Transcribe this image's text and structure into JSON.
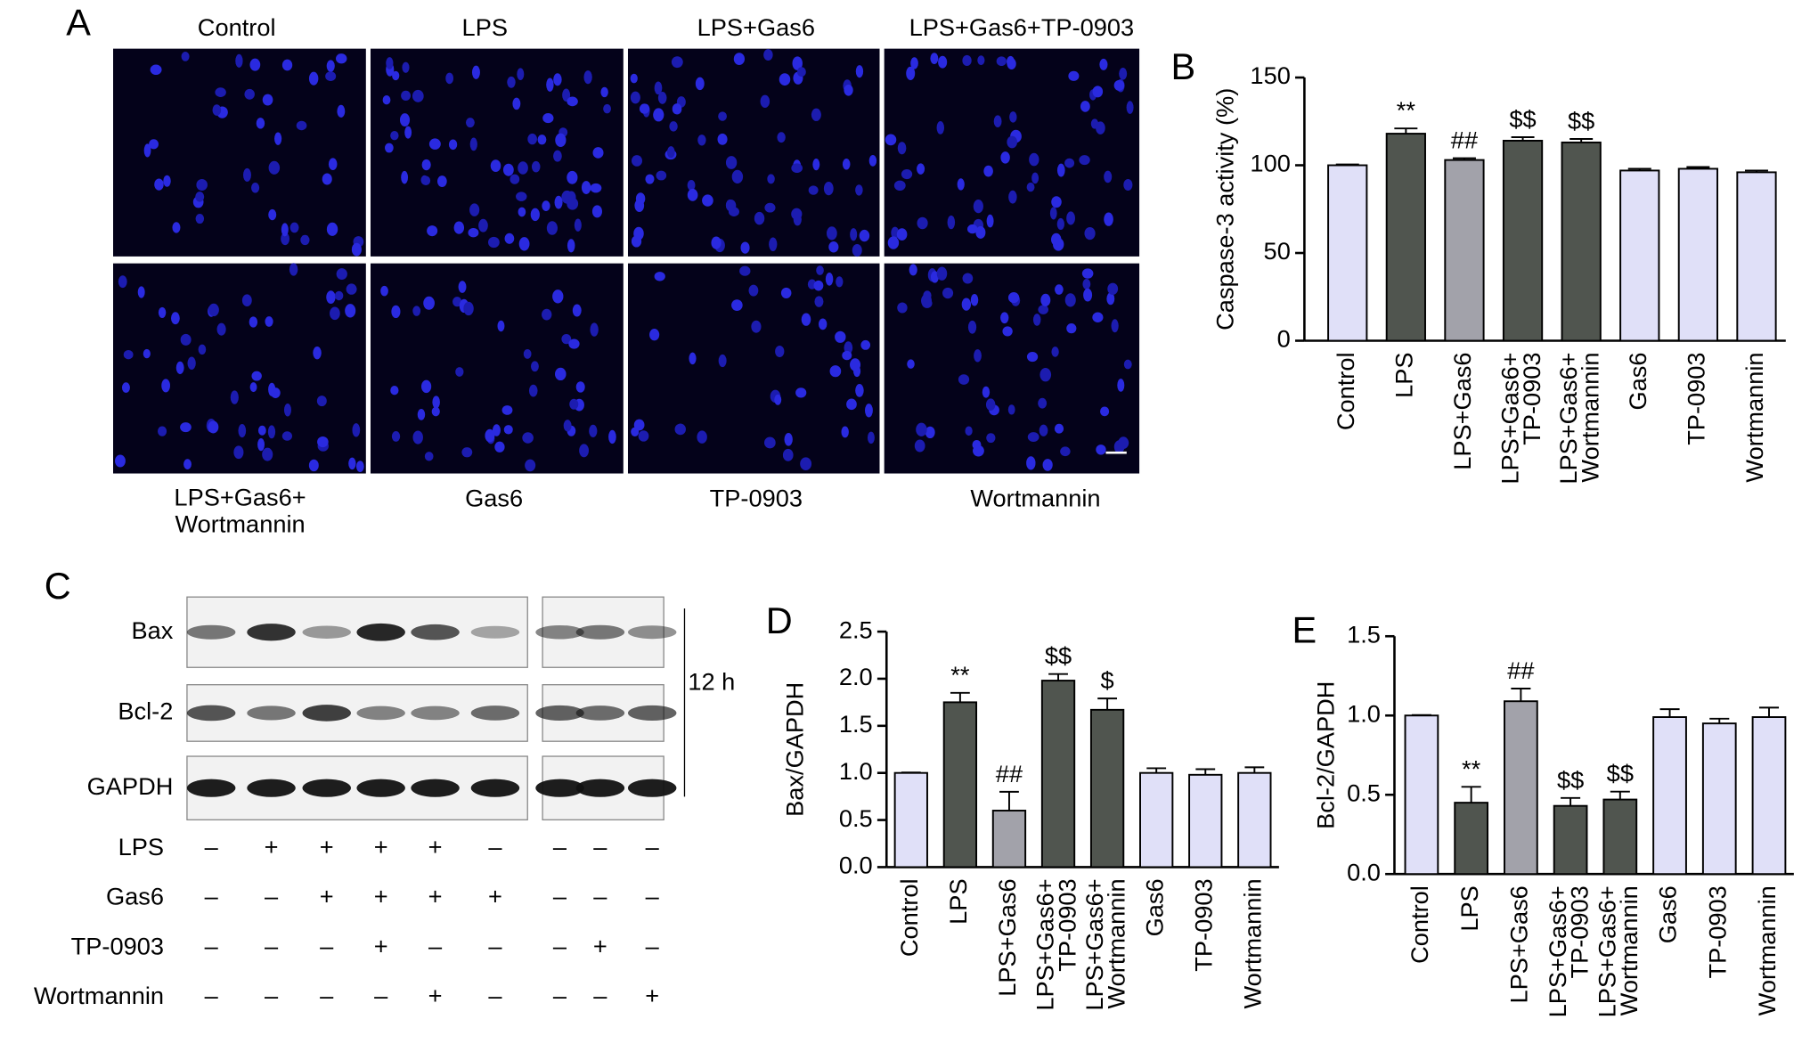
{
  "panel_labels": [
    "A",
    "B",
    "C",
    "D",
    "E"
  ],
  "panel_a": {
    "top_labels": [
      "Control",
      "LPS",
      "LPS+Gas6",
      "LPS+Gas6+TP-0903"
    ],
    "bottom_labels": [
      "LPS+Gas6+ Wortmannin",
      "Gas6",
      "TP-0903",
      "Wortmannin"
    ]
  },
  "panel_c": {
    "blots": [
      "Bax",
      "Bcl-2",
      "GAPDH"
    ],
    "time": "12 h",
    "rows": [
      {
        "label": "LPS",
        "signs": [
          "–",
          "+",
          "+",
          "+",
          "+",
          "–",
          "–",
          "–",
          "–"
        ]
      },
      {
        "label": "Gas6",
        "signs": [
          "–",
          "–",
          "+",
          "+",
          "+",
          "+",
          "–",
          "–",
          "–"
        ]
      },
      {
        "label": "TP-0903",
        "signs": [
          "–",
          "–",
          "–",
          "+",
          "–",
          "–",
          "–",
          "+",
          "–"
        ]
      },
      {
        "label": "Wortmannin",
        "signs": [
          "–",
          "–",
          "–",
          "–",
          "+",
          "–",
          "–",
          "–",
          "+"
        ]
      }
    ]
  },
  "chart_data": [
    {
      "type": "bar",
      "ylabel": "Caspase-3 activity (%)",
      "categories": [
        "Control",
        "LPS",
        "LPS+Gas6",
        "LPS+Gas6+ TP-0903",
        "LPS+Gas6+ Wortmannin",
        "Gas6",
        "TP-0903",
        "Wortmannin"
      ],
      "values": [
        100,
        118,
        103,
        114,
        113,
        97,
        98,
        96
      ],
      "errors": [
        0.5,
        3,
        1,
        2,
        2,
        1,
        1,
        1
      ],
      "colors": [
        "#e0e0f8",
        "#50554f",
        "#a2a2aa",
        "#50554f",
        "#50554f",
        "#e0e0f8",
        "#e0e0f8",
        "#e0e0f8"
      ],
      "annotations": [
        null,
        "**",
        "##",
        "$$",
        "$$",
        null,
        null,
        null
      ],
      "ylim": [
        0,
        150
      ],
      "yticks": [
        0,
        50,
        100,
        150
      ]
    },
    {
      "type": "bar",
      "ylabel": "Bax/GAPDH",
      "categories": [
        "Control",
        "LPS",
        "LPS+Gas6",
        "LPS+Gas6+ TP-0903",
        "LPS+Gas6+ Wortmannin",
        "Gas6",
        "TP-0903",
        "Wortmannin"
      ],
      "values": [
        1.0,
        1.75,
        0.6,
        1.98,
        1.67,
        1.0,
        0.98,
        1.0
      ],
      "errors": [
        0.005,
        0.1,
        0.2,
        0.07,
        0.12,
        0.05,
        0.06,
        0.06
      ],
      "colors": [
        "#e0e0f8",
        "#50554f",
        "#a2a2aa",
        "#50554f",
        "#50554f",
        "#e0e0f8",
        "#e0e0f8",
        "#e0e0f8"
      ],
      "annotations": [
        null,
        "**",
        "##",
        "$$",
        "$",
        null,
        null,
        null
      ],
      "ylim": [
        0,
        2.5
      ],
      "yticks": [
        {
          "value": 0,
          "label": "0.0"
        },
        0.5,
        {
          "value": 1,
          "label": "1.0"
        },
        1.5,
        {
          "value": 2,
          "label": "2.0"
        },
        2.5
      ]
    },
    {
      "type": "bar",
      "ylabel": "Bcl-2/GAPDH",
      "categories": [
        "Control",
        "LPS",
        "LPS+Gas6",
        "LPS+Gas6+ TP-0903",
        "LPS+Gas6+ Wortmannin",
        "Gas6",
        "TP-0903",
        "Wortmannin"
      ],
      "values": [
        1.0,
        0.45,
        1.09,
        0.43,
        0.47,
        0.99,
        0.95,
        0.99
      ],
      "errors": [
        0.003,
        0.1,
        0.08,
        0.05,
        0.05,
        0.05,
        0.03,
        0.06
      ],
      "colors": [
        "#e0e0f8",
        "#50554f",
        "#a2a2aa",
        "#50554f",
        "#50554f",
        "#e0e0f8",
        "#e0e0f8",
        "#e0e0f8"
      ],
      "annotations": [
        null,
        "**",
        "##",
        "$$",
        "$$",
        null,
        null,
        null
      ],
      "ylim": [
        0,
        1.5
      ],
      "yticks": [
        {
          "value": 0,
          "label": "0.0"
        },
        0.5,
        {
          "value": 1,
          "label": "1.0"
        },
        1.5
      ]
    }
  ]
}
